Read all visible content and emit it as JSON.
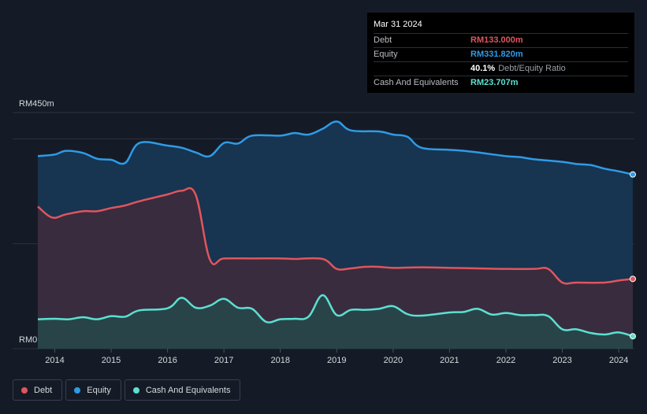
{
  "tooltip": {
    "date": "Mar 31 2024",
    "rows": [
      {
        "label": "Debt",
        "value": "RM133.000m",
        "color": "#e0555d"
      },
      {
        "label": "Equity",
        "value": "RM331.820m",
        "color": "#2e9be6"
      },
      {
        "label": "",
        "value": "40.1%",
        "suffix": "Debt/Equity Ratio",
        "color": "#ffffff"
      },
      {
        "label": "Cash And Equivalents",
        "value": "RM23.707m",
        "color": "#5ce0d0"
      }
    ]
  },
  "legend": [
    {
      "label": "Debt",
      "color": "#e0555d"
    },
    {
      "label": "Equity",
      "color": "#2e9be6"
    },
    {
      "label": "Cash And Equivalents",
      "color": "#5ce0d0"
    }
  ],
  "chart_data": {
    "type": "area",
    "y_top_label": "RM450m",
    "y_bottom_label": "RM0",
    "ylim": [
      0,
      450
    ],
    "xlim": [
      2013.7,
      2024.25
    ],
    "x_ticks": [
      "2014",
      "2015",
      "2016",
      "2017",
      "2018",
      "2019",
      "2020",
      "2021",
      "2022",
      "2023",
      "2024"
    ],
    "series": [
      {
        "name": "Equity",
        "color": "#2e9be6",
        "x": [
          2013.7,
          2014.0,
          2014.2,
          2014.5,
          2014.75,
          2015.0,
          2015.25,
          2015.5,
          2016.0,
          2016.25,
          2016.5,
          2016.75,
          2017.0,
          2017.25,
          2017.5,
          2018.0,
          2018.25,
          2018.5,
          2018.75,
          2019.0,
          2019.25,
          2019.75,
          2020.0,
          2020.25,
          2020.5,
          2021.0,
          2021.25,
          2021.5,
          2022.0,
          2022.25,
          2022.5,
          2023.0,
          2023.25,
          2023.5,
          2023.75,
          2024.0,
          2024.25
        ],
        "values": [
          367,
          370,
          377,
          373,
          362,
          360,
          354,
          392,
          387,
          383,
          374,
          367,
          392,
          391,
          406,
          406,
          411,
          408,
          419,
          433,
          416,
          414,
          408,
          404,
          383,
          379,
          377,
          374,
          367,
          365,
          361,
          356,
          352,
          350,
          343,
          338,
          332
        ]
      },
      {
        "name": "Debt",
        "color": "#e0555d",
        "x": [
          2013.7,
          2013.95,
          2014.2,
          2014.5,
          2014.75,
          2015.0,
          2015.25,
          2015.5,
          2016.0,
          2016.25,
          2016.5,
          2016.75,
          2017.0,
          2017.5,
          2018.0,
          2018.25,
          2018.75,
          2019.0,
          2019.25,
          2019.5,
          2019.75,
          2020.0,
          2020.5,
          2021.0,
          2021.5,
          2022.0,
          2022.5,
          2022.75,
          2023.0,
          2023.25,
          2023.75,
          2024.0,
          2024.25
        ],
        "values": [
          271,
          250,
          256,
          262,
          262,
          268,
          273,
          281,
          294,
          301,
          293,
          170,
          172,
          172,
          172,
          171,
          171,
          152,
          153,
          156,
          156,
          154,
          155,
          154,
          153,
          152,
          152,
          152,
          126,
          126,
          126,
          130,
          133
        ]
      },
      {
        "name": "Cash And Equivalents",
        "color": "#5ce0d0",
        "x": [
          2013.7,
          2014.0,
          2014.25,
          2014.5,
          2014.75,
          2015.0,
          2015.25,
          2015.5,
          2016.0,
          2016.25,
          2016.5,
          2016.75,
          2017.0,
          2017.25,
          2017.5,
          2017.75,
          2018.0,
          2018.25,
          2018.5,
          2018.75,
          2019.0,
          2019.25,
          2019.5,
          2019.75,
          2020.0,
          2020.25,
          2020.5,
          2021.0,
          2021.25,
          2021.5,
          2021.75,
          2022.0,
          2022.25,
          2022.5,
          2022.75,
          2023.0,
          2023.25,
          2023.5,
          2023.75,
          2024.0,
          2024.25
        ],
        "values": [
          56,
          57,
          56,
          60,
          56,
          62,
          61,
          73,
          77,
          97,
          78,
          82,
          95,
          78,
          76,
          51,
          56,
          57,
          61,
          102,
          64,
          74,
          74,
          76,
          81,
          66,
          63,
          69,
          70,
          76,
          65,
          68,
          64,
          64,
          62,
          37,
          37,
          30,
          27,
          31,
          23.7
        ]
      }
    ]
  }
}
